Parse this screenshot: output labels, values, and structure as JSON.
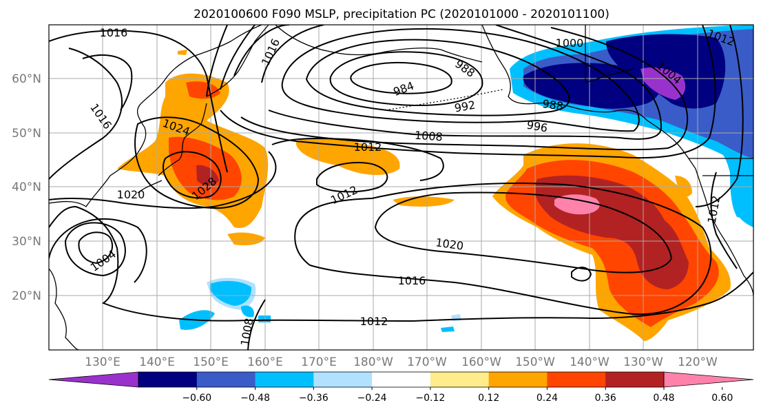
{
  "title": "2020100600 F090 MSLP, precipitation PC (2020101000 - 2020101100)",
  "lat_labels": [
    "60°N",
    "50°N",
    "40°N",
    "30°N",
    "20°N"
  ],
  "lon_labels": [
    "130°E",
    "140°E",
    "150°E",
    "160°E",
    "170°E",
    "180°W",
    "170°W",
    "160°W",
    "150°W",
    "140°W",
    "130°W",
    "120°W"
  ],
  "colorbar": {
    "colors": [
      "#9932cc",
      "#000080",
      "#3a5cc8",
      "#00bfff",
      "#b0e2ff",
      "#ffffff",
      "#ffec8b",
      "#ffa500",
      "#ff4500",
      "#b22222",
      "#ff82ab"
    ],
    "tick_labels": [
      "−0.60",
      "−0.48",
      "−0.36",
      "−0.24",
      "−0.12",
      "0.12",
      "0.24",
      "0.36",
      "0.48",
      "0.60"
    ]
  },
  "isobar_labels": [
    "1016",
    "1016",
    "1000",
    "1012",
    "988",
    "984",
    "992",
    "1004",
    "1024",
    "988",
    "996",
    "1008",
    "1012",
    "1028",
    "1012",
    "1020",
    "1012",
    "1020",
    "1004",
    "1016",
    "1008",
    "1012",
    "1016"
  ]
}
